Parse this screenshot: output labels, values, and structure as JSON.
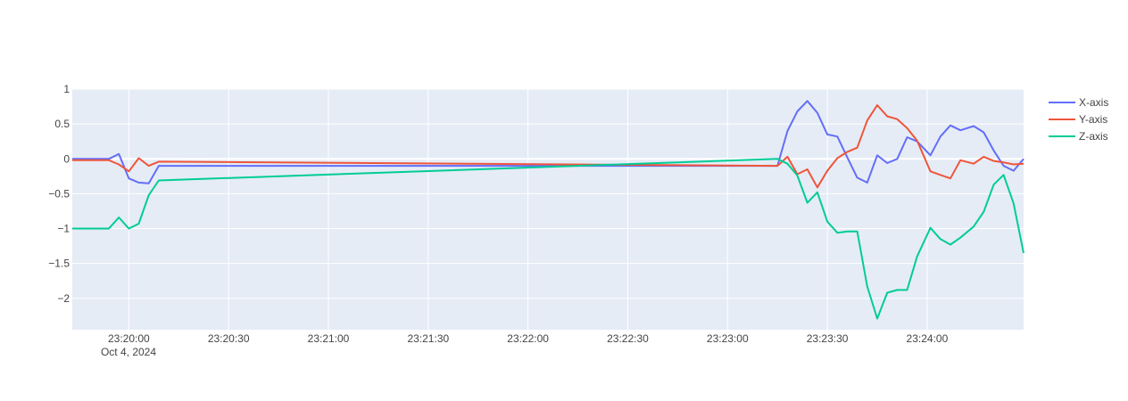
{
  "chart_data": {
    "type": "line",
    "title": "",
    "xlabel": "",
    "ylabel": "",
    "x_axis_type": "datetime",
    "date_label": "Oct 4, 2024",
    "xlim": [
      "2024-10-04 23:19:43",
      "2024-10-04 23:24:29"
    ],
    "ylim": [
      -2.45,
      1.0
    ],
    "grid": true,
    "legend_position": "top-right",
    "x_ticks": [
      "23:20:00",
      "23:20:30",
      "23:21:00",
      "23:21:30",
      "23:22:00",
      "23:22:30",
      "23:23:00",
      "23:23:30",
      "23:24:00"
    ],
    "y_ticks": [
      "1",
      "0.5",
      "0",
      "−0.5",
      "−1",
      "−1.5",
      "−2"
    ],
    "colors": {
      "plot_bg": "#e5ecf6",
      "grid": "#ffffff",
      "X-axis": "#636efa",
      "Y-axis": "#ef553b",
      "Z-axis": "#00cc96"
    },
    "series": [
      {
        "name": "X-axis",
        "points": [
          [
            "23:19:43",
            0.0
          ],
          [
            "23:19:54",
            0.0
          ],
          [
            "23:19:57",
            0.07
          ],
          [
            "23:20:00",
            -0.28
          ],
          [
            "23:20:03",
            -0.34
          ],
          [
            "23:20:06",
            -0.35
          ],
          [
            "23:20:09",
            -0.1
          ],
          [
            "23:23:15",
            -0.1
          ],
          [
            "23:23:18",
            0.4
          ],
          [
            "23:23:21",
            0.68
          ],
          [
            "23:23:24",
            0.83
          ],
          [
            "23:23:27",
            0.66
          ],
          [
            "23:23:30",
            0.35
          ],
          [
            "23:23:33",
            0.32
          ],
          [
            "23:23:36",
            0.02
          ],
          [
            "23:23:39",
            -0.27
          ],
          [
            "23:23:42",
            -0.34
          ],
          [
            "23:23:45",
            0.05
          ],
          [
            "23:23:48",
            -0.06
          ],
          [
            "23:23:51",
            0.0
          ],
          [
            "23:23:54",
            0.31
          ],
          [
            "23:23:57",
            0.25
          ],
          [
            "23:24:01",
            0.05
          ],
          [
            "23:24:04",
            0.32
          ],
          [
            "23:24:07",
            0.48
          ],
          [
            "23:24:10",
            0.41
          ],
          [
            "23:24:14",
            0.47
          ],
          [
            "23:24:17",
            0.38
          ],
          [
            "23:24:20",
            0.12
          ],
          [
            "23:24:23",
            -0.1
          ],
          [
            "23:24:26",
            -0.17
          ],
          [
            "23:24:29",
            0.0
          ]
        ]
      },
      {
        "name": "Y-axis",
        "points": [
          [
            "23:19:43",
            -0.02
          ],
          [
            "23:19:54",
            -0.02
          ],
          [
            "23:19:57",
            -0.08
          ],
          [
            "23:20:00",
            -0.18
          ],
          [
            "23:20:03",
            0.01
          ],
          [
            "23:20:06",
            -0.1
          ],
          [
            "23:20:09",
            -0.04
          ],
          [
            "23:23:15",
            -0.1
          ],
          [
            "23:23:18",
            0.03
          ],
          [
            "23:23:21",
            -0.22
          ],
          [
            "23:23:24",
            -0.15
          ],
          [
            "23:23:27",
            -0.41
          ],
          [
            "23:23:30",
            -0.17
          ],
          [
            "23:23:33",
            0.01
          ],
          [
            "23:23:36",
            0.1
          ],
          [
            "23:23:39",
            0.16
          ],
          [
            "23:23:42",
            0.55
          ],
          [
            "23:23:45",
            0.77
          ],
          [
            "23:23:48",
            0.61
          ],
          [
            "23:23:51",
            0.57
          ],
          [
            "23:23:54",
            0.44
          ],
          [
            "23:23:57",
            0.26
          ],
          [
            "23:24:01",
            -0.18
          ],
          [
            "23:24:04",
            -0.23
          ],
          [
            "23:24:07",
            -0.28
          ],
          [
            "23:24:10",
            -0.02
          ],
          [
            "23:24:14",
            -0.07
          ],
          [
            "23:24:17",
            0.03
          ],
          [
            "23:24:20",
            -0.03
          ],
          [
            "23:24:23",
            -0.05
          ],
          [
            "23:24:26",
            -0.08
          ],
          [
            "23:24:29",
            -0.07
          ]
        ]
      },
      {
        "name": "Z-axis",
        "points": [
          [
            "23:19:43",
            -1.0
          ],
          [
            "23:19:54",
            -1.0
          ],
          [
            "23:19:57",
            -0.84
          ],
          [
            "23:20:00",
            -1.0
          ],
          [
            "23:20:03",
            -0.93
          ],
          [
            "23:20:06",
            -0.52
          ],
          [
            "23:20:09",
            -0.31
          ],
          [
            "23:23:15",
            0.0
          ],
          [
            "23:23:18",
            -0.07
          ],
          [
            "23:23:21",
            -0.24
          ],
          [
            "23:23:24",
            -0.63
          ],
          [
            "23:23:27",
            -0.48
          ],
          [
            "23:23:30",
            -0.9
          ],
          [
            "23:23:33",
            -1.06
          ],
          [
            "23:23:36",
            -1.04
          ],
          [
            "23:23:39",
            -1.04
          ],
          [
            "23:23:42",
            -1.83
          ],
          [
            "23:23:45",
            -2.29
          ],
          [
            "23:23:48",
            -1.92
          ],
          [
            "23:23:51",
            -1.88
          ],
          [
            "23:23:54",
            -1.88
          ],
          [
            "23:23:57",
            -1.4
          ],
          [
            "23:24:01",
            -0.99
          ],
          [
            "23:24:04",
            -1.15
          ],
          [
            "23:24:07",
            -1.23
          ],
          [
            "23:24:10",
            -1.13
          ],
          [
            "23:24:14",
            -0.97
          ],
          [
            "23:24:17",
            -0.76
          ],
          [
            "23:24:20",
            -0.37
          ],
          [
            "23:24:23",
            -0.23
          ],
          [
            "23:24:26",
            -0.64
          ],
          [
            "23:24:29",
            -1.35
          ]
        ]
      }
    ]
  }
}
